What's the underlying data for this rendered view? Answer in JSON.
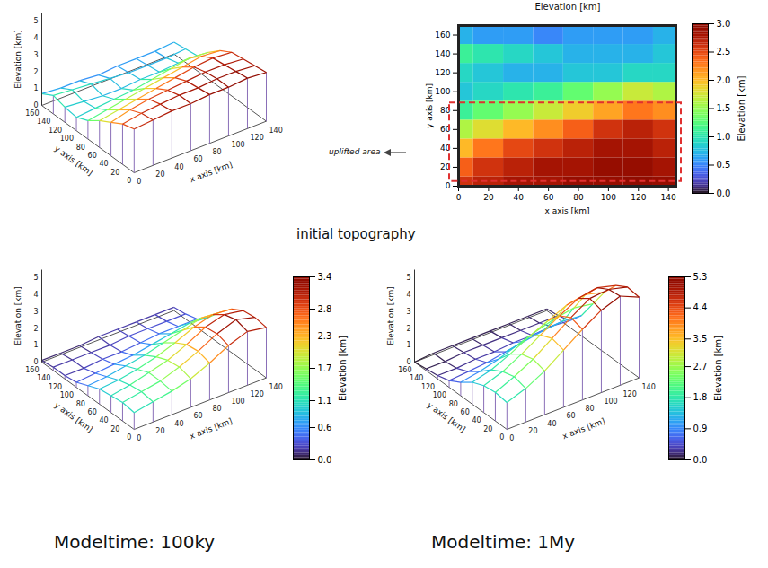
{
  "chart_data": [
    {
      "type": "surface3d",
      "x_label": "x axis [km]",
      "y_label": "y axis [km]",
      "z_label": "Elevation [km]",
      "x": [
        0,
        20,
        40,
        60,
        80,
        100,
        120,
        140
      ],
      "y": [
        0,
        20,
        40,
        60,
        80,
        100,
        120,
        140,
        160
      ],
      "elevation": [
        [
          2.6,
          2.7,
          2.8,
          2.8,
          2.9,
          2.9,
          3.0,
          2.9
        ],
        [
          2.4,
          2.6,
          2.7,
          2.8,
          2.8,
          2.9,
          2.9,
          2.8
        ],
        [
          2.0,
          2.3,
          2.5,
          2.6,
          2.7,
          2.8,
          2.8,
          2.7
        ],
        [
          1.6,
          1.8,
          2.0,
          2.2,
          2.4,
          2.6,
          2.7,
          2.6
        ],
        [
          1.1,
          1.3,
          1.5,
          1.7,
          1.9,
          2.1,
          2.3,
          2.2
        ],
        [
          0.8,
          0.9,
          1.0,
          1.1,
          1.3,
          1.5,
          1.7,
          1.6
        ],
        [
          0.9,
          0.8,
          0.7,
          0.7,
          0.8,
          0.8,
          0.9,
          0.9
        ],
        [
          1.1,
          1.0,
          0.9,
          0.8,
          0.7,
          0.7,
          0.7,
          0.8
        ],
        [
          0.7,
          0.6,
          0.6,
          0.5,
          0.6,
          0.6,
          0.6,
          0.7
        ]
      ],
      "xlim": [
        0,
        140
      ],
      "ylim": [
        0,
        160
      ],
      "zlim": [
        0,
        5.5
      ],
      "xticks": [
        0,
        20,
        40,
        60,
        80,
        100,
        120,
        140
      ],
      "yticks": [
        0,
        20,
        40,
        60,
        80,
        100,
        120,
        140,
        160
      ],
      "zticks": [
        0,
        1,
        2,
        3,
        4,
        5
      ],
      "clim": [
        0,
        3.0
      ]
    },
    {
      "type": "heatmap",
      "title": "Elevation [km]",
      "x_label": "x axis [km]",
      "y_label": "y axis [km]",
      "x": [
        0,
        20,
        40,
        60,
        80,
        100,
        120,
        140
      ],
      "y": [
        0,
        20,
        40,
        60,
        80,
        100,
        120,
        140,
        160
      ],
      "elevation": [
        [
          2.6,
          2.7,
          2.8,
          2.8,
          2.9,
          2.9,
          3.0,
          2.9
        ],
        [
          2.4,
          2.6,
          2.7,
          2.8,
          2.8,
          2.9,
          2.9,
          2.8
        ],
        [
          2.0,
          2.3,
          2.5,
          2.6,
          2.7,
          2.8,
          2.8,
          2.7
        ],
        [
          1.6,
          1.8,
          2.0,
          2.2,
          2.4,
          2.6,
          2.7,
          2.6
        ],
        [
          1.1,
          1.3,
          1.5,
          1.7,
          1.9,
          2.1,
          2.3,
          2.2
        ],
        [
          0.8,
          0.9,
          1.0,
          1.1,
          1.3,
          1.5,
          1.7,
          1.6
        ],
        [
          0.9,
          0.8,
          0.7,
          0.7,
          0.8,
          0.8,
          0.9,
          0.9
        ],
        [
          1.1,
          1.0,
          0.9,
          0.8,
          0.7,
          0.7,
          0.7,
          0.8
        ],
        [
          0.7,
          0.6,
          0.6,
          0.5,
          0.6,
          0.6,
          0.6,
          0.7
        ]
      ],
      "xlim": [
        0,
        145
      ],
      "ylim": [
        0,
        170
      ],
      "xticks": [
        0,
        20,
        40,
        60,
        80,
        100,
        120,
        140
      ],
      "yticks": [
        0,
        20,
        40,
        60,
        80,
        100,
        120,
        140,
        160
      ],
      "colorbar": {
        "label": "Elevation [km]",
        "lim": [
          0,
          3.0
        ],
        "ticks": [
          {
            "value": 0,
            "label": "0.0"
          },
          0.5,
          {
            "value": 1,
            "label": "1.0"
          },
          1.5,
          {
            "value": 2,
            "label": "2.0"
          },
          2.5,
          {
            "value": 3,
            "label": "3.0"
          }
        ]
      },
      "annotation": {
        "text": "uplifted area",
        "y": [
          5,
          88
        ]
      },
      "caption": "initial topography"
    },
    {
      "type": "surface3d",
      "x_label": "x axis [km]",
      "y_label": "y axis [km]",
      "z_label": "Elevation [km]",
      "x": [
        0,
        20,
        40,
        60,
        80,
        100,
        120,
        140
      ],
      "y": [
        0,
        20,
        40,
        60,
        80,
        100,
        120,
        140,
        160
      ],
      "elevation": [
        [
          1.0,
          1.2,
          1.4,
          1.7,
          2.2,
          2.8,
          3.2,
          3.0
        ],
        [
          1.1,
          1.3,
          1.5,
          1.9,
          2.4,
          3.0,
          3.4,
          3.1
        ],
        [
          1.0,
          1.2,
          1.5,
          1.8,
          2.3,
          2.9,
          3.2,
          3.0
        ],
        [
          0.9,
          1.0,
          1.2,
          1.5,
          1.9,
          2.4,
          2.7,
          2.6
        ],
        [
          0.6,
          0.7,
          0.9,
          1.1,
          1.4,
          1.7,
          2.0,
          1.9
        ],
        [
          0.3,
          0.4,
          0.5,
          0.6,
          0.8,
          1.0,
          1.2,
          1.1
        ],
        [
          0.2,
          0.2,
          0.3,
          0.3,
          0.4,
          0.5,
          0.5,
          0.5
        ],
        [
          0.2,
          0.2,
          0.2,
          0.2,
          0.3,
          0.3,
          0.3,
          0.3
        ],
        [
          0.1,
          0.1,
          0.1,
          0.2,
          0.2,
          0.2,
          0.2,
          0.2
        ]
      ],
      "xlim": [
        0,
        140
      ],
      "ylim": [
        0,
        160
      ],
      "zlim": [
        0,
        5.5
      ],
      "xticks": [
        0,
        20,
        40,
        60,
        80,
        100,
        120,
        140
      ],
      "yticks": [
        0,
        20,
        40,
        60,
        80,
        100,
        120,
        140,
        160
      ],
      "zticks": [
        0,
        1,
        2,
        3,
        4,
        5
      ],
      "colorbar": {
        "label": "Elevation [km]",
        "lim": [
          0,
          3.4
        ],
        "ticks": [
          {
            "value": 0,
            "label": "0.0"
          },
          0.6,
          1.1,
          1.7,
          2.3,
          2.8,
          3.4
        ]
      },
      "caption": "Modeltime: 100ky"
    },
    {
      "type": "surface3d",
      "x_label": "x axis [km]",
      "y_label": "y axis [km]",
      "z_label": "Elevation [km]",
      "x": [
        0,
        20,
        40,
        60,
        80,
        100,
        120,
        140
      ],
      "y": [
        0,
        20,
        40,
        60,
        80,
        100,
        120,
        140,
        160
      ],
      "elevation": [
        [
          1.6,
          2.0,
          2.6,
          3.4,
          4.2,
          4.9,
          5.3,
          4.8
        ],
        [
          1.7,
          2.2,
          2.8,
          3.6,
          4.4,
          5.1,
          5.2,
          4.9
        ],
        [
          1.6,
          2.0,
          2.6,
          3.3,
          4.0,
          4.6,
          4.8,
          4.5
        ],
        [
          1.3,
          1.6,
          2.1,
          2.7,
          3.2,
          3.7,
          3.9,
          3.6
        ],
        [
          0.8,
          1.0,
          1.3,
          1.7,
          2.1,
          2.4,
          2.6,
          2.4
        ],
        [
          0.4,
          0.5,
          0.6,
          0.8,
          1.0,
          1.2,
          1.3,
          1.2
        ],
        [
          0.2,
          0.2,
          0.3,
          0.3,
          0.4,
          0.4,
          0.5,
          0.4
        ],
        [
          0.1,
          0.1,
          0.2,
          0.2,
          0.2,
          0.2,
          0.2,
          0.2
        ],
        [
          0.0,
          0.1,
          0.1,
          0.1,
          0.1,
          0.1,
          0.1,
          0.1
        ]
      ],
      "xlim": [
        0,
        140
      ],
      "ylim": [
        0,
        160
      ],
      "zlim": [
        0,
        5.5
      ],
      "xticks": [
        0,
        20,
        40,
        60,
        80,
        100,
        120,
        140
      ],
      "yticks": [
        0,
        20,
        40,
        60,
        80,
        100,
        120,
        140,
        160
      ],
      "zticks": [
        0,
        1,
        2,
        3,
        4,
        5
      ],
      "colorbar": {
        "label": "Elevation [km]",
        "lim": [
          0,
          5.3
        ],
        "ticks": [
          {
            "value": 0,
            "label": "0.0"
          },
          0.9,
          1.8,
          2.7,
          3.5,
          4.4,
          5.3
        ]
      },
      "caption": "Modeltime: 1My"
    }
  ]
}
